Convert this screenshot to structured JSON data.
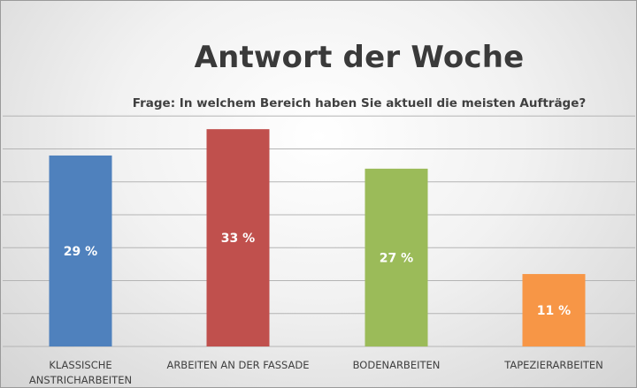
{
  "chart_data": {
    "type": "bar",
    "title": "Antwort der Woche",
    "subtitle": "Frage: In welchem Bereich haben Sie aktuell die meisten Aufträge?",
    "categories": [
      [
        "KLASSISCHE",
        "ANSTRICHARBEITEN"
      ],
      [
        "ARBEITEN AN DER FASSADE"
      ],
      [
        "BODENARBEITEN"
      ],
      [
        "TAPEZIERARBEITEN"
      ]
    ],
    "values": [
      29,
      33,
      27,
      11
    ],
    "data_labels": [
      "29 %",
      "33 %",
      "27 %",
      "11 %"
    ],
    "colors": [
      "#4f81bd",
      "#c0504d",
      "#9bbb59",
      "#f79646"
    ],
    "xlabel": "",
    "ylabel": "",
    "ylim": [
      0,
      35
    ],
    "grid": true,
    "legend": "none"
  }
}
